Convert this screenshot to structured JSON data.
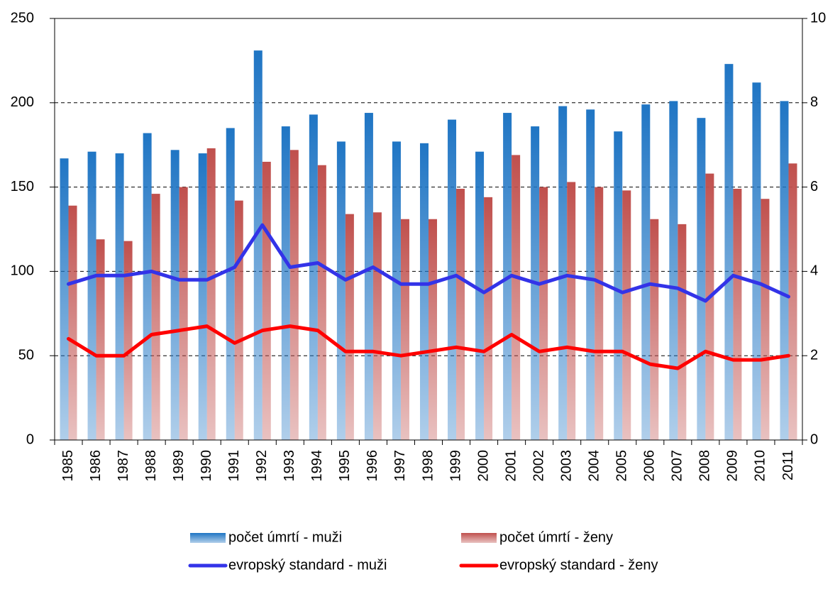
{
  "chart_data": {
    "type": "bar",
    "categories": [
      "1985",
      "1986",
      "1987",
      "1988",
      "1989",
      "1990",
      "1991",
      "1992",
      "1993",
      "1994",
      "1995",
      "1996",
      "1997",
      "1998",
      "1999",
      "2000",
      "2001",
      "2002",
      "2003",
      "2004",
      "2005",
      "2006",
      "2007",
      "2008",
      "2009",
      "2010",
      "2011"
    ],
    "series": [
      {
        "name": "počet úmrtí - muži",
        "type": "bar",
        "color": "#1f75c4",
        "values": [
          167,
          171,
          170,
          182,
          172,
          170,
          185,
          231,
          186,
          193,
          177,
          194,
          177,
          176,
          190,
          171,
          194,
          186,
          198,
          196,
          183,
          199,
          201,
          191,
          223,
          212,
          201
        ]
      },
      {
        "name": "počet úmrtí - ženy",
        "type": "bar",
        "color": "#c0504d",
        "values": [
          139,
          119,
          118,
          146,
          150,
          173,
          142,
          165,
          172,
          163,
          134,
          135,
          131,
          131,
          149,
          144,
          169,
          150,
          153,
          150,
          148,
          131,
          128,
          158,
          149,
          143,
          164
        ]
      },
      {
        "name": "evropský standard - muži",
        "type": "line",
        "axis": "y2",
        "color": "#3333e8",
        "values": [
          3.7,
          3.9,
          3.9,
          4.0,
          3.8,
          3.8,
          4.1,
          5.1,
          4.1,
          4.2,
          3.8,
          4.1,
          3.7,
          3.7,
          3.9,
          3.5,
          3.9,
          3.7,
          3.9,
          3.8,
          3.5,
          3.7,
          3.6,
          3.3,
          3.9,
          3.7,
          3.4
        ]
      },
      {
        "name": "evropský standard - ženy",
        "type": "line",
        "axis": "y2",
        "color": "#ff0000",
        "values": [
          2.4,
          2.0,
          2.0,
          2.5,
          2.6,
          2.7,
          2.3,
          2.6,
          2.7,
          2.6,
          2.1,
          2.1,
          2.0,
          2.1,
          2.2,
          2.1,
          2.5,
          2.1,
          2.2,
          2.1,
          2.1,
          1.8,
          1.7,
          2.1,
          1.9,
          1.9,
          2.0
        ]
      }
    ],
    "ylim": [
      0,
      250
    ],
    "yticks": [
      0,
      50,
      100,
      150,
      200,
      250
    ],
    "y2lim": [
      0,
      10
    ],
    "y2ticks": [
      0,
      2,
      4,
      6,
      8,
      10
    ],
    "grid": true
  }
}
